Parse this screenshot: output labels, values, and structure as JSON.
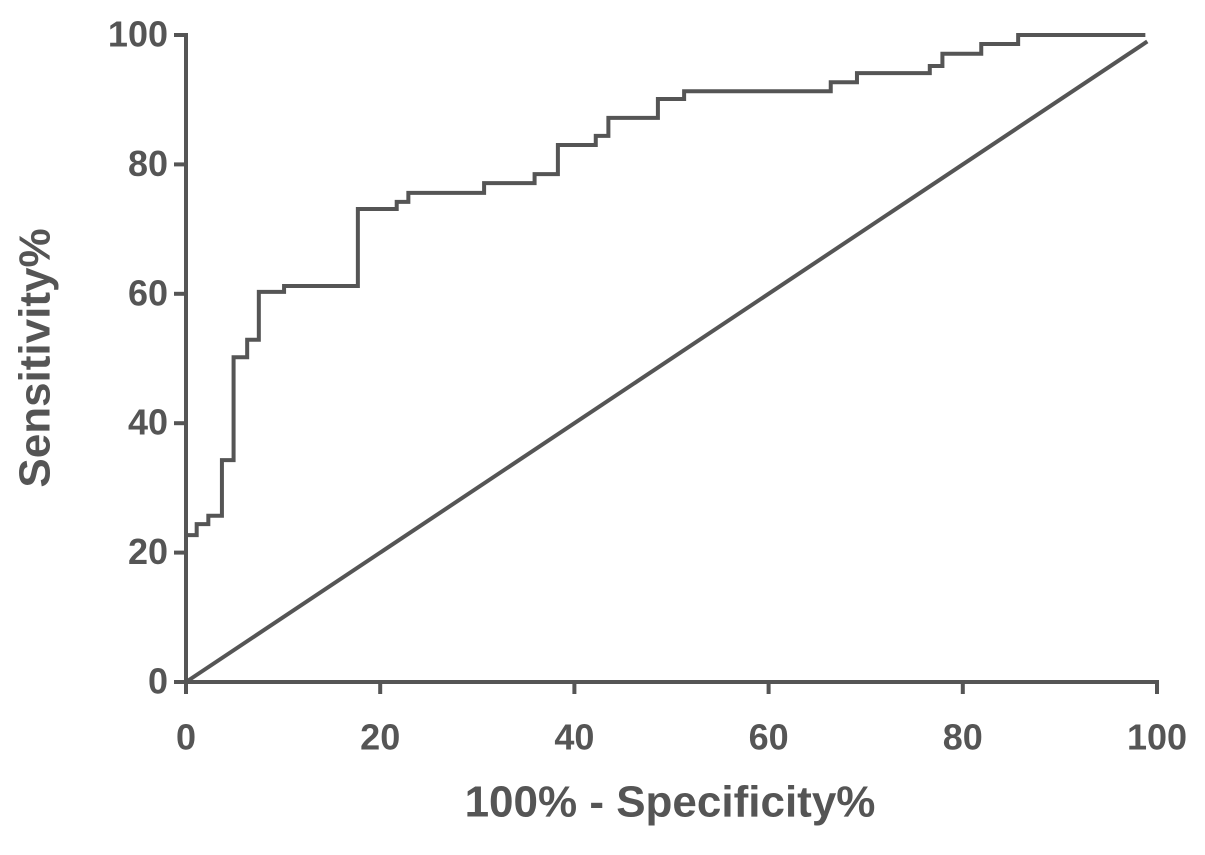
{
  "chart_data": {
    "type": "line",
    "xlabel": "100% - Specificity%",
    "ylabel": "Sensitivity%",
    "xlim": [
      0,
      100
    ],
    "ylim": [
      0,
      100
    ],
    "xticks": [
      0,
      20,
      40,
      60,
      80,
      100
    ],
    "yticks": [
      0,
      20,
      40,
      60,
      80,
      100
    ],
    "series": [
      {
        "color": "#555555",
        "x": [
          0,
          0,
          1.1,
          1.1,
          2.3,
          2.3,
          3.7,
          3.7,
          4.9,
          4.9,
          6.3,
          6.3,
          7.5,
          7.5,
          10.1,
          10.1,
          17.7,
          17.7,
          21.7,
          21.7,
          22.9,
          22.9,
          30.7,
          30.7,
          35.9,
          35.9,
          38.3,
          38.3,
          42.2,
          42.2,
          43.5,
          43.5,
          48.6,
          48.6,
          51.3,
          51.3,
          66.4,
          66.4,
          69.1,
          69.1,
          76.6,
          76.6,
          77.9,
          77.9,
          81.9,
          81.9,
          85.7,
          85.7,
          98.8
        ],
        "values": [
          0,
          22.7,
          22.7,
          24.4,
          24.4,
          25.7,
          25.7,
          34.3,
          34.3,
          50.2,
          50.2,
          52.9,
          52.9,
          60.3,
          60.3,
          61.2,
          61.2,
          73.1,
          73.1,
          74.2,
          74.2,
          75.6,
          75.6,
          77.1,
          77.1,
          78.5,
          78.5,
          83.0,
          83.0,
          84.4,
          84.4,
          87.2,
          87.2,
          90.1,
          90.1,
          91.3,
          91.3,
          92.7,
          92.7,
          94.1,
          94.1,
          95.2,
          95.2,
          97.1,
          97.1,
          98.6,
          98.6,
          100,
          100
        ]
      },
      {
        "color": "#555555",
        "x": [
          0,
          99
        ],
        "values": [
          0,
          99
        ]
      }
    ]
  }
}
